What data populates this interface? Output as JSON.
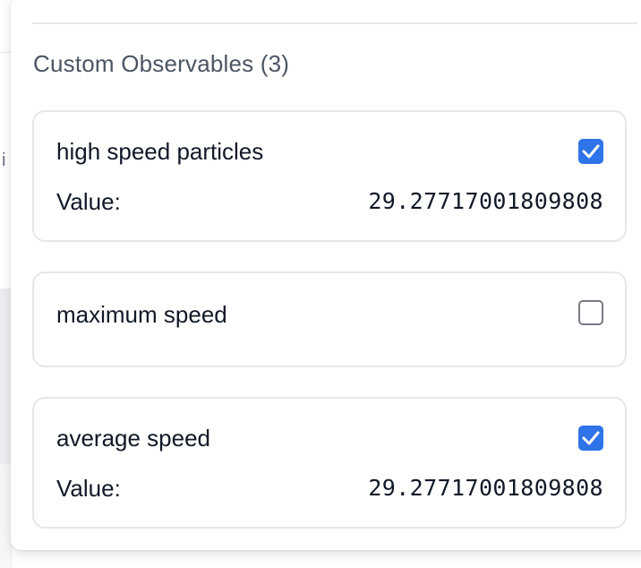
{
  "background": {
    "fragment_text": "i"
  },
  "section": {
    "title": "Custom Observables (3)"
  },
  "observables": [
    {
      "name": "high speed particles",
      "checked": true,
      "value_label": "Value:",
      "value": "29.27717001809808"
    },
    {
      "name": "maximum speed",
      "checked": false
    },
    {
      "name": "average speed",
      "checked": true,
      "value_label": "Value:",
      "value": "29.27717001809808"
    }
  ],
  "colors": {
    "accent": "#2f74e8",
    "border": "#e5e7eb",
    "title": "#4b5563",
    "text": "#111827"
  },
  "icons": {
    "checked": "checkmark-icon"
  }
}
